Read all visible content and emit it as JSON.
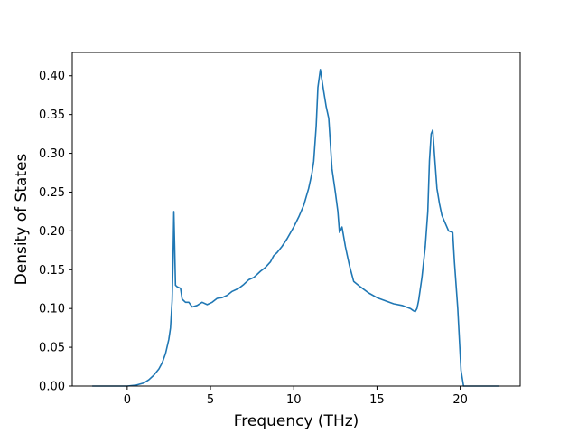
{
  "chart_data": {
    "type": "line",
    "title": "",
    "xlabel": "Frequency (THz)",
    "ylabel": "Density of States",
    "xlim": [
      -3.3,
      23.6
    ],
    "ylim": [
      0.0,
      0.43
    ],
    "grid": false,
    "x_ticks": [
      0,
      5,
      10,
      15,
      20
    ],
    "x_tick_labels": [
      "0",
      "5",
      "10",
      "15",
      "20"
    ],
    "y_ticks": [
      0.0,
      0.05,
      0.1,
      0.15,
      0.2,
      0.25,
      0.3,
      0.35,
      0.4
    ],
    "y_tick_labels": [
      "0.00",
      "0.05",
      "0.10",
      "0.15",
      "0.20",
      "0.25",
      "0.30",
      "0.35",
      "0.40"
    ],
    "series": [
      {
        "color": "#1f77b4",
        "x": [
          -2.1,
          -1.0,
          0.0,
          0.5,
          1.0,
          1.3,
          1.6,
          1.9,
          2.1,
          2.3,
          2.5,
          2.6,
          2.7,
          2.75,
          2.8,
          2.85,
          2.9,
          3.0,
          3.2,
          3.3,
          3.5,
          3.7,
          3.9,
          4.2,
          4.5,
          4.8,
          5.1,
          5.4,
          5.7,
          6.0,
          6.3,
          6.7,
          7.0,
          7.3,
          7.6,
          8.0,
          8.3,
          8.6,
          8.8,
          9.0,
          9.3,
          9.6,
          10.0,
          10.3,
          10.6,
          10.9,
          11.1,
          11.2,
          11.35,
          11.45,
          11.6,
          11.8,
          11.95,
          12.1,
          12.3,
          12.5,
          12.65,
          12.75,
          12.9,
          13.1,
          13.2,
          13.35,
          13.6,
          14.0,
          14.5,
          15.0,
          15.5,
          16.0,
          16.5,
          17.0,
          17.2,
          17.3,
          17.4,
          17.5,
          17.7,
          17.9,
          18.05,
          18.15,
          18.25,
          18.35,
          18.45,
          18.6,
          18.75,
          18.9,
          19.1,
          19.3,
          19.55,
          19.65,
          19.85,
          20.05,
          20.2,
          20.4,
          20.6,
          21.5,
          22.3
        ],
        "y": [
          0.0,
          0.0,
          0.0,
          0.001,
          0.004,
          0.008,
          0.014,
          0.022,
          0.03,
          0.042,
          0.06,
          0.075,
          0.11,
          0.16,
          0.225,
          0.18,
          0.13,
          0.128,
          0.126,
          0.112,
          0.108,
          0.108,
          0.102,
          0.104,
          0.108,
          0.105,
          0.108,
          0.113,
          0.114,
          0.117,
          0.122,
          0.126,
          0.131,
          0.137,
          0.14,
          0.148,
          0.153,
          0.16,
          0.168,
          0.172,
          0.18,
          0.19,
          0.205,
          0.218,
          0.233,
          0.255,
          0.275,
          0.29,
          0.335,
          0.385,
          0.408,
          0.38,
          0.36,
          0.345,
          0.28,
          0.25,
          0.225,
          0.198,
          0.205,
          0.18,
          0.17,
          0.155,
          0.135,
          0.128,
          0.12,
          0.114,
          0.11,
          0.106,
          0.104,
          0.1,
          0.097,
          0.096,
          0.1,
          0.11,
          0.14,
          0.18,
          0.225,
          0.29,
          0.325,
          0.33,
          0.3,
          0.255,
          0.235,
          0.22,
          0.21,
          0.2,
          0.198,
          0.16,
          0.1,
          0.02,
          0.0,
          0.0,
          0.0,
          0.0,
          0.0
        ]
      }
    ]
  }
}
